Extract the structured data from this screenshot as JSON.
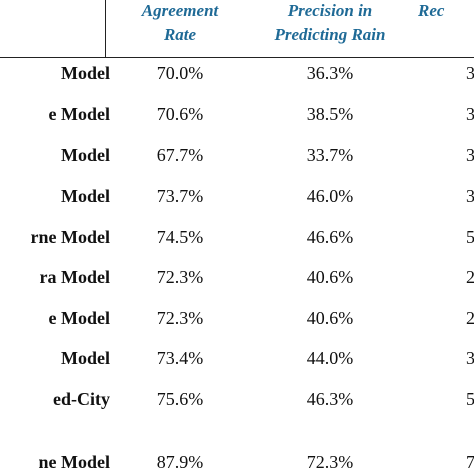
{
  "table": {
    "headers": {
      "agreement": [
        "Agreement",
        "Rate"
      ],
      "precision": [
        "Precision in",
        "Predicting Rain"
      ],
      "recall": "Rec"
    },
    "rows": [
      {
        "name": "Model",
        "rate": "70.0%",
        "precision": "36.3%",
        "recall": "3"
      },
      {
        "name": "e Model",
        "rate": "70.6%",
        "precision": "38.5%",
        "recall": "3"
      },
      {
        "name": "Model",
        "rate": "67.7%",
        "precision": "33.7%",
        "recall": "3"
      },
      {
        "name": "Model",
        "rate": "73.7%",
        "precision": "46.0%",
        "recall": "3"
      },
      {
        "name": "rne Model",
        "rate": "74.5%",
        "precision": "46.6%",
        "recall": "5"
      },
      {
        "name": "ra Model",
        "rate": "72.3%",
        "precision": "40.6%",
        "recall": "2"
      },
      {
        "name": "e Model",
        "rate": "72.3%",
        "precision": "40.6%",
        "recall": "2"
      },
      {
        "name": "Model",
        "rate": "73.4%",
        "precision": "44.0%",
        "recall": "3"
      },
      {
        "name": "ed-City",
        "rate": "75.6%",
        "precision": "46.3%",
        "recall": "5"
      },
      {
        "name": "ne Model",
        "rate": "87.9%",
        "precision": "72.3%",
        "recall": "7"
      }
    ]
  },
  "colors": {
    "header_text": "#1f6a96",
    "rule": "#222222"
  }
}
